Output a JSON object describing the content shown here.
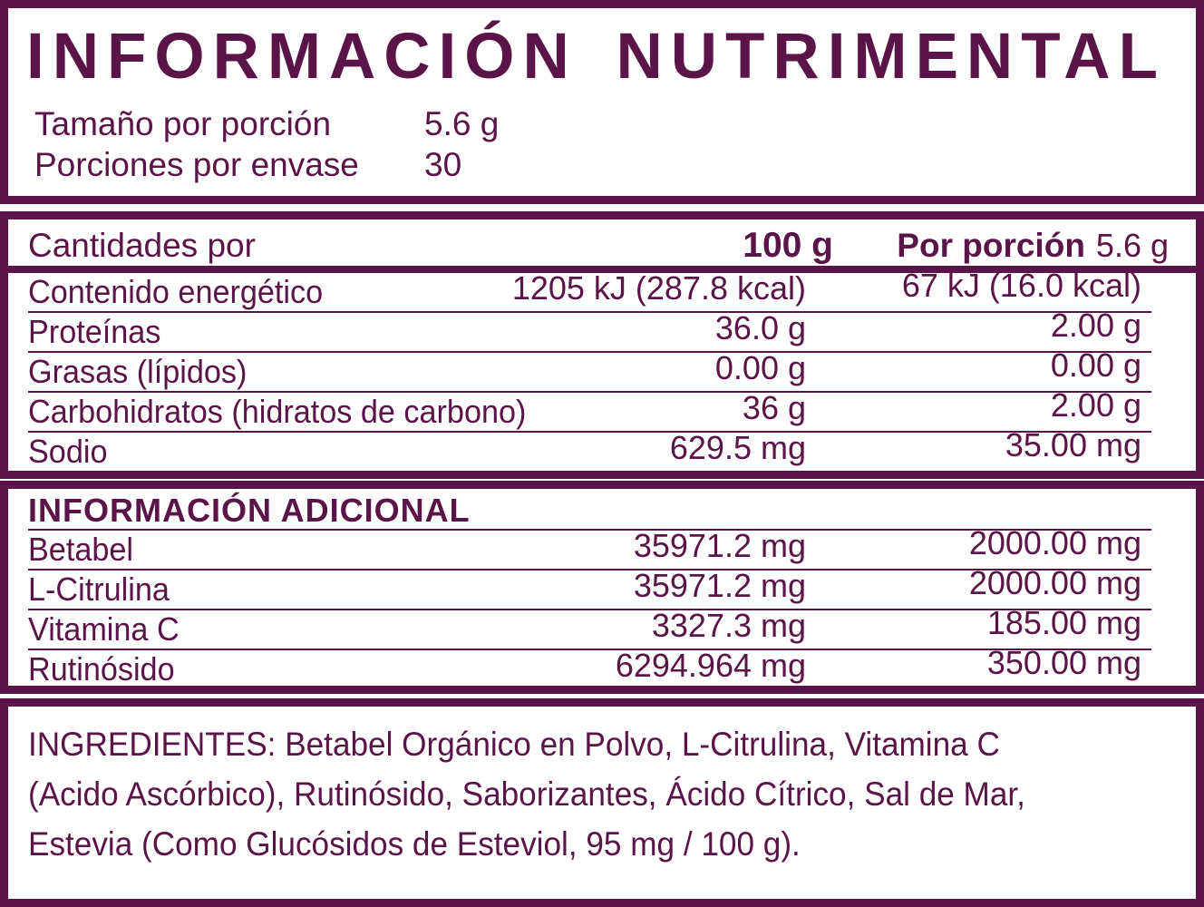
{
  "theme": {
    "accent_color": "#5a1448",
    "background_color": "#ffffff"
  },
  "header": {
    "title": "INFORMACIÓN NUTRIMENTAL",
    "rows": [
      {
        "label": "Tamaño por porción",
        "value": "5.6 g"
      },
      {
        "label": "Porciones por envase",
        "value": "30"
      }
    ]
  },
  "nutrition_table": {
    "header": {
      "label": "Cantidades por",
      "per_100g": "100 g",
      "per_portion_label": "Por porción",
      "per_portion_size": "5.6 g"
    },
    "rows": [
      {
        "label": "Contenido energético",
        "per_100g": "1205 kJ (287.8 kcal)",
        "per_portion": "67 kJ (16.0 kcal)"
      },
      {
        "label": "Proteínas",
        "per_100g": "36.0 g",
        "per_portion": "2.00 g"
      },
      {
        "label": "Grasas (lípidos)",
        "per_100g": "0.00 g",
        "per_portion": "0.00 g"
      },
      {
        "label": "Carbohidratos (hidratos de carbono)",
        "per_100g": "36 g",
        "per_portion": "2.00 g"
      },
      {
        "label": "Sodio",
        "per_100g": "629.5 mg",
        "per_portion": "35.00 mg"
      }
    ]
  },
  "additional_table": {
    "title": "INFORMACIÓN ADICIONAL",
    "rows": [
      {
        "label": "Betabel",
        "per_100g": "35971.2 mg",
        "per_portion": "2000.00 mg"
      },
      {
        "label": "L-Citrulina",
        "per_100g": "35971.2 mg",
        "per_portion": "2000.00 mg"
      },
      {
        "label": "Vitamina C",
        "per_100g": "3327.3 mg",
        "per_portion": "185.00 mg"
      },
      {
        "label": "Rutinósido",
        "per_100g": "6294.964 mg",
        "per_portion": "350.00 mg"
      }
    ]
  },
  "ingredients": {
    "lines": [
      "INGREDIENTES: Betabel Orgánico en Polvo, L-Citrulina, Vitamina C",
      "(Acido Ascórbico), Rutinósido, Saborizantes, Ácido Cítrico, Sal de Mar,",
      "Estevia (Como Glucósidos de Esteviol, 95 mg / 100 g)."
    ]
  }
}
